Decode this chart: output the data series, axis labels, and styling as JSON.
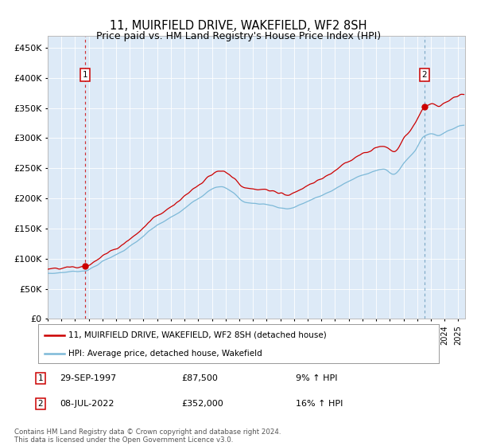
{
  "title": "11, MUIRFIELD DRIVE, WAKEFIELD, WF2 8SH",
  "subtitle": "Price paid vs. HM Land Registry's House Price Index (HPI)",
  "sale1_date": "29-SEP-1997",
  "sale1_price": 87500,
  "sale1_label": "9% ↑ HPI",
  "sale2_date": "08-JUL-2022",
  "sale2_price": 352000,
  "sale2_label": "16% ↑ HPI",
  "sale1_x": 1997.75,
  "sale2_x": 2022.52,
  "hpi_color": "#7db9d8",
  "price_color": "#cc0000",
  "background_color": "#ddeaf7",
  "ylim": [
    0,
    470000
  ],
  "xlim": [
    1995.0,
    2025.5
  ],
  "legend_entry1": "11, MUIRFIELD DRIVE, WAKEFIELD, WF2 8SH (detached house)",
  "legend_entry2": "HPI: Average price, detached house, Wakefield",
  "footer": "Contains HM Land Registry data © Crown copyright and database right 2024.\nThis data is licensed under the Open Government Licence v3.0.",
  "yticks": [
    0,
    50000,
    100000,
    150000,
    200000,
    250000,
    300000,
    350000,
    400000,
    450000
  ],
  "ytick_labels": [
    "£0",
    "£50K",
    "£100K",
    "£150K",
    "£200K",
    "£250K",
    "£300K",
    "£350K",
    "£400K",
    "£450K"
  ]
}
